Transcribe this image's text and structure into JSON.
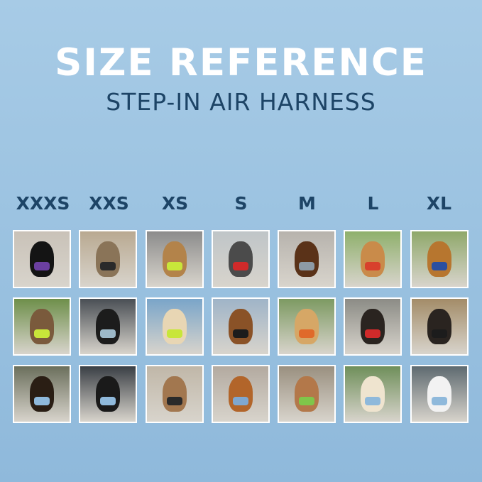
{
  "title": "SIZE REFERENCE",
  "subtitle": "STEP-IN AIR HARNESS",
  "sizes": [
    "XXXS",
    "XXS",
    "XS",
    "S",
    "M",
    "L",
    "XL"
  ],
  "photos": [
    {
      "bg": "#c9c2b8",
      "dog": "#141414",
      "harness": "#6b3fa0"
    },
    {
      "bg": "#b9a991",
      "dog": "#8a7458",
      "harness": "#2a2a2a"
    },
    {
      "bg": "#8c8c8c",
      "dog": "#b3834a",
      "harness": "#c8e63a"
    },
    {
      "bg": "#bfc5c8",
      "dog": "#4b4b4b",
      "harness": "#d02a2a"
    },
    {
      "bg": "#b7b3ad",
      "dog": "#5a3218",
      "harness": "#8d9aa5"
    },
    {
      "bg": "#8fb06c",
      "dog": "#c98b4a",
      "harness": "#d8402c"
    },
    {
      "bg": "#8fa86a",
      "dog": "#b7762f",
      "harness": "#2b4fa0"
    },
    {
      "bg": "#6e8f4a",
      "dog": "#7a5a3c",
      "harness": "#c8e63a"
    },
    {
      "bg": "#4a4f55",
      "dog": "#1c1c1c",
      "harness": "#9cb8c8"
    },
    {
      "bg": "#7aa5c9",
      "dog": "#e8d6b4",
      "harness": "#c8e63a"
    },
    {
      "bg": "#9fb4c8",
      "dog": "#8a5227",
      "harness": "#1c1c1c"
    },
    {
      "bg": "#7d9a62",
      "dog": "#d6a766",
      "harness": "#e06a2a"
    },
    {
      "bg": "#8c8c86",
      "dog": "#2a2420",
      "harness": "#d02a2a"
    },
    {
      "bg": "#a38c68",
      "dog": "#2a2420",
      "harness": "#1c1c1c"
    },
    {
      "bg": "#6b6f5c",
      "dog": "#2a1e14",
      "harness": "#8fb9db"
    },
    {
      "bg": "#3a3f45",
      "dog": "#1a1a1a",
      "harness": "#8fb9db"
    },
    {
      "bg": "#c0b7a8",
      "dog": "#a2774f",
      "harness": "#2a2a2a"
    },
    {
      "bg": "#b3aaa0",
      "dog": "#b2652a",
      "harness": "#7fa7cf"
    },
    {
      "bg": "#9a9080",
      "dog": "#b3784a",
      "harness": "#7fc64a"
    },
    {
      "bg": "#6f8f5a",
      "dog": "#efe4cf",
      "harness": "#8fb9db"
    },
    {
      "bg": "#5e6a70",
      "dog": "#f2f2f2",
      "harness": "#8fb9db"
    }
  ]
}
